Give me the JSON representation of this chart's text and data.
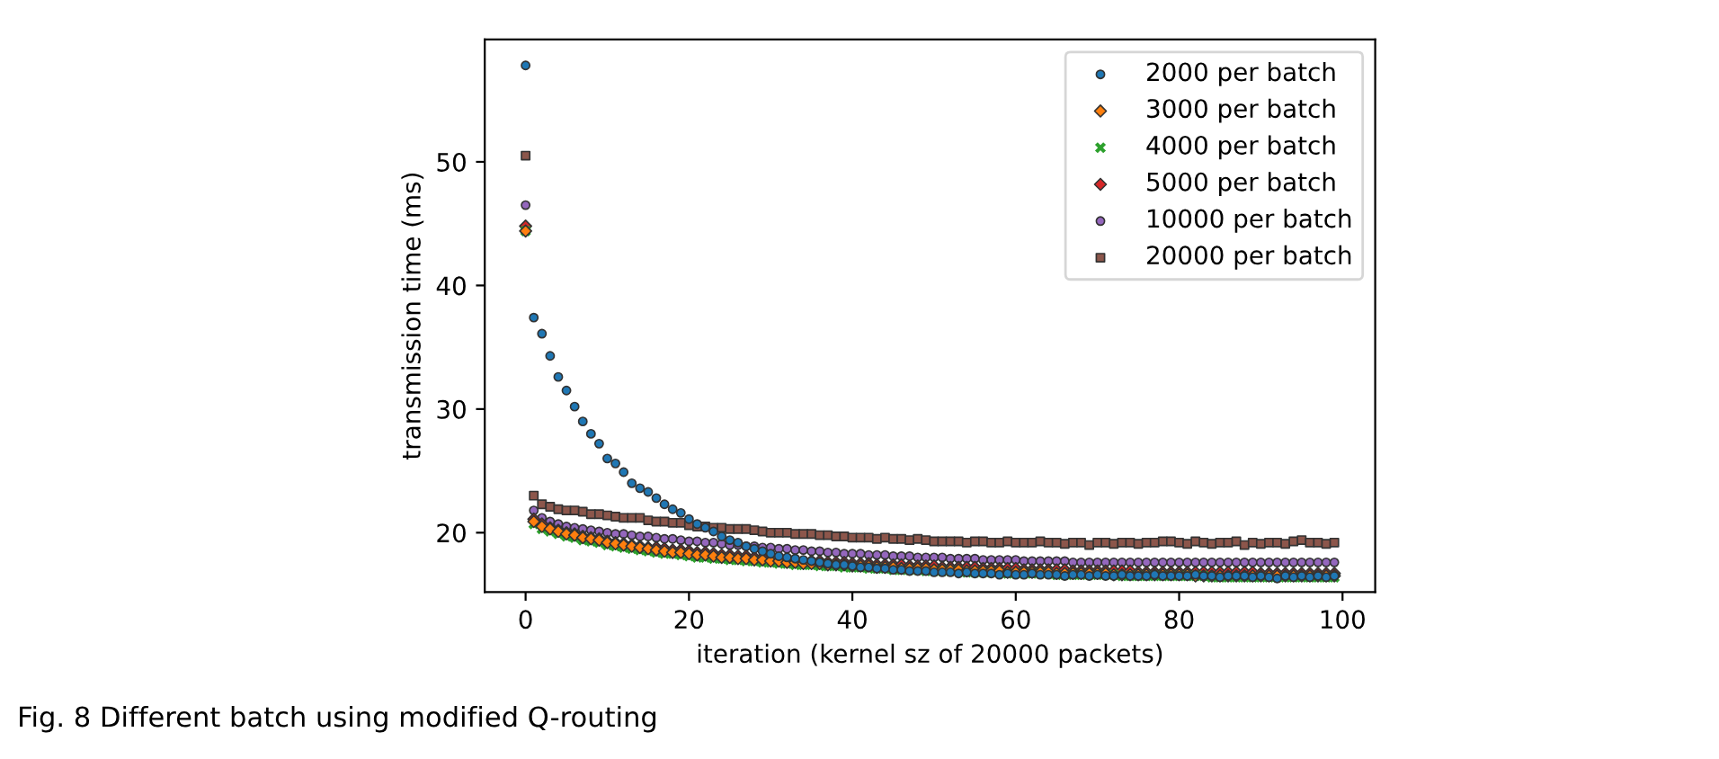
{
  "chart_data": {
    "type": "scatter",
    "xlabel": "iteration (kernel sz of 20000 packets)",
    "ylabel": "transmission time (ms)",
    "annotations": [
      "Fig. 8 Different batch using modified Q-routing"
    ],
    "x": [
      0,
      1,
      2,
      3,
      4,
      5,
      6,
      7,
      8,
      9,
      10,
      11,
      12,
      13,
      14,
      15,
      16,
      17,
      18,
      19,
      20,
      21,
      22,
      23,
      24,
      25,
      26,
      27,
      28,
      29,
      30,
      31,
      32,
      33,
      34,
      35,
      36,
      37,
      38,
      39,
      40,
      41,
      42,
      43,
      44,
      45,
      46,
      47,
      48,
      49,
      50,
      51,
      52,
      53,
      54,
      55,
      56,
      57,
      58,
      59,
      60,
      61,
      62,
      63,
      64,
      65,
      66,
      67,
      68,
      69,
      70,
      71,
      72,
      73,
      74,
      75,
      76,
      77,
      78,
      79,
      80,
      81,
      82,
      83,
      84,
      85,
      86,
      87,
      88,
      89,
      90,
      91,
      92,
      93,
      94,
      95,
      96,
      97,
      98,
      99
    ],
    "xlim": [
      -5,
      104
    ],
    "ylim": [
      15.2,
      59.9
    ],
    "xticks": [
      0,
      20,
      40,
      60,
      80,
      100
    ],
    "yticks": [
      20,
      30,
      40,
      50
    ],
    "legend": "top right",
    "grid": false,
    "series": [
      {
        "name": "2000 per batch",
        "color": "#1f77b4",
        "marker": "circle",
        "values": [
          57.8,
          37.4,
          36.1,
          34.3,
          32.6,
          31.5,
          30.2,
          29.0,
          28.0,
          27.2,
          26.0,
          25.6,
          24.9,
          24.0,
          23.6,
          23.3,
          22.8,
          22.3,
          21.9,
          21.6,
          21.1,
          20.7,
          20.4,
          20.1,
          19.7,
          19.4,
          19.2,
          18.9,
          18.7,
          18.5,
          18.3,
          18.1,
          18.0,
          17.9,
          17.8,
          17.7,
          17.6,
          17.5,
          17.4,
          17.4,
          17.3,
          17.2,
          17.2,
          17.1,
          17.1,
          17.0,
          17.0,
          16.9,
          16.9,
          16.9,
          16.8,
          16.8,
          16.8,
          16.7,
          16.8,
          16.7,
          16.7,
          16.7,
          16.6,
          16.7,
          16.6,
          16.6,
          16.7,
          16.6,
          16.6,
          16.6,
          16.5,
          16.6,
          16.6,
          16.5,
          16.6,
          16.5,
          16.5,
          16.6,
          16.5,
          16.5,
          16.5,
          16.6,
          16.5,
          16.5,
          16.5,
          16.5,
          16.6,
          16.5,
          16.5,
          16.4,
          16.5,
          16.5,
          16.5,
          16.4,
          16.5,
          16.4,
          16.3,
          16.5,
          16.4,
          16.5,
          16.4,
          16.5,
          16.4,
          16.5
        ]
      },
      {
        "name": "3000 per batch",
        "color": "#ff7f0e",
        "marker": "diamond",
        "values": [
          44.4,
          20.9,
          20.5,
          20.3,
          20.1,
          19.9,
          19.8,
          19.6,
          19.5,
          19.4,
          19.2,
          19.1,
          19.0,
          18.9,
          18.8,
          18.7,
          18.6,
          18.5,
          18.4,
          18.4,
          18.3,
          18.2,
          18.2,
          18.1,
          18.0,
          18.0,
          17.9,
          17.9,
          17.8,
          17.8,
          17.7,
          17.7,
          17.6,
          17.6,
          17.5,
          17.5,
          17.5,
          17.4,
          17.4,
          17.4,
          17.3,
          17.3,
          17.3,
          17.2,
          17.2,
          17.2,
          17.1,
          17.1,
          17.1,
          17.1,
          17.0,
          17.0,
          17.0,
          17.0,
          16.9,
          16.9,
          16.9,
          16.9,
          16.9,
          16.8,
          16.8,
          16.8,
          16.8,
          16.8,
          16.8,
          16.7,
          16.7,
          16.7,
          16.7,
          16.7,
          16.7,
          16.7,
          16.6,
          16.6,
          16.6,
          16.6,
          16.6,
          16.6,
          16.6,
          16.6,
          16.6,
          16.6,
          16.5,
          16.5,
          16.5,
          16.5,
          16.5,
          16.5,
          16.5,
          16.5,
          16.5,
          16.5,
          16.5,
          16.5,
          16.5,
          16.5,
          16.5,
          16.5,
          16.5,
          16.5
        ]
      },
      {
        "name": "4000 per batch",
        "color": "#2ca02c",
        "marker": "cross",
        "values": [
          44.4,
          20.7,
          20.3,
          20.1,
          19.9,
          19.7,
          19.6,
          19.4,
          19.3,
          19.2,
          19.0,
          18.9,
          18.8,
          18.7,
          18.6,
          18.5,
          18.4,
          18.3,
          18.3,
          18.2,
          18.1,
          18.0,
          18.0,
          17.9,
          17.9,
          17.8,
          17.8,
          17.7,
          17.7,
          17.6,
          17.6,
          17.5,
          17.5,
          17.4,
          17.4,
          17.4,
          17.3,
          17.3,
          17.3,
          17.2,
          17.2,
          17.2,
          17.1,
          17.1,
          17.1,
          17.0,
          17.0,
          17.0,
          17.0,
          16.9,
          16.9,
          16.9,
          16.9,
          16.9,
          16.8,
          16.8,
          16.8,
          16.8,
          16.8,
          16.7,
          16.7,
          16.7,
          16.7,
          16.7,
          16.7,
          16.6,
          16.6,
          16.6,
          16.6,
          16.6,
          16.6,
          16.6,
          16.6,
          16.5,
          16.5,
          16.5,
          16.5,
          16.5,
          16.5,
          16.5,
          16.5,
          16.5,
          16.5,
          16.5,
          16.4,
          16.4,
          16.4,
          16.4,
          16.4,
          16.4,
          16.4,
          16.4,
          16.4,
          16.4,
          16.4,
          16.4,
          16.4,
          16.4,
          16.4,
          16.4
        ]
      },
      {
        "name": "5000 per batch",
        "color": "#d62728",
        "marker": "diamond",
        "values": [
          44.8,
          21.1,
          20.7,
          20.4,
          20.2,
          20.0,
          19.9,
          19.7,
          19.6,
          19.5,
          19.3,
          19.2,
          19.1,
          19.0,
          18.9,
          18.8,
          18.8,
          18.7,
          18.6,
          18.6,
          18.5,
          18.4,
          18.4,
          18.3,
          18.2,
          18.2,
          18.1,
          18.1,
          18.0,
          18.0,
          null,
          null,
          null,
          null,
          null,
          17.7,
          17.7,
          17.6,
          17.6,
          17.6,
          17.5,
          17.5,
          17.5,
          17.4,
          17.4,
          17.4,
          17.4,
          17.3,
          17.3,
          17.3,
          17.3,
          17.2,
          17.2,
          17.2,
          17.2,
          17.2,
          17.1,
          17.1,
          17.1,
          17.1,
          17.1,
          17.0,
          17.0,
          17.0,
          17.0,
          17.0,
          17.0,
          16.9,
          16.9,
          16.9,
          16.9,
          16.9,
          16.9,
          16.9,
          16.9,
          16.8,
          16.8,
          16.8,
          16.8,
          16.8,
          16.8,
          16.8,
          16.8,
          16.8,
          16.8,
          16.8,
          16.8,
          16.8,
          16.8,
          16.8,
          16.7,
          16.7,
          16.7,
          16.7,
          16.7,
          16.7,
          16.7,
          16.7,
          16.7,
          16.7
        ]
      },
      {
        "name": "10000 per batch",
        "color": "#9467bd",
        "marker": "circle",
        "values": [
          46.5,
          21.8,
          21.2,
          20.9,
          20.7,
          20.5,
          20.4,
          20.3,
          20.2,
          20.1,
          20.0,
          19.9,
          19.9,
          19.8,
          19.7,
          19.7,
          19.6,
          19.5,
          19.5,
          19.4,
          19.3,
          19.3,
          19.2,
          19.2,
          19.1,
          19.0,
          19.0,
          18.9,
          18.9,
          18.8,
          18.8,
          18.7,
          18.7,
          18.6,
          18.6,
          18.5,
          18.5,
          18.4,
          18.4,
          18.3,
          18.3,
          18.3,
          18.2,
          18.2,
          18.2,
          18.1,
          18.1,
          18.1,
          18.0,
          18.0,
          18.0,
          18.0,
          17.9,
          17.9,
          17.9,
          17.9,
          17.8,
          17.8,
          17.8,
          17.8,
          17.8,
          17.7,
          17.7,
          17.7,
          17.7,
          17.7,
          17.7,
          17.6,
          17.6,
          17.6,
          17.6,
          17.6,
          17.6,
          17.6,
          17.6,
          17.6,
          17.6,
          17.6,
          17.6,
          17.6,
          17.6,
          17.6,
          17.6,
          17.6,
          17.6,
          17.6,
          17.6,
          17.6,
          17.6,
          17.6,
          17.6,
          17.6,
          17.6,
          17.6,
          17.6,
          17.6,
          17.6,
          17.6,
          17.6,
          17.6
        ]
      },
      {
        "name": "20000 per batch",
        "color": "#8c564b",
        "marker": "square",
        "values": [
          50.5,
          23.0,
          22.3,
          22.1,
          21.9,
          21.8,
          21.8,
          21.7,
          21.5,
          21.5,
          21.4,
          21.3,
          21.2,
          21.2,
          21.2,
          21.0,
          20.9,
          20.9,
          20.8,
          20.8,
          20.6,
          20.5,
          20.5,
          20.4,
          20.4,
          20.3,
          20.3,
          20.3,
          20.2,
          20.1,
          20.0,
          20.0,
          20.0,
          19.9,
          19.9,
          19.9,
          19.8,
          19.8,
          19.7,
          19.7,
          19.6,
          19.6,
          19.6,
          19.5,
          19.6,
          19.5,
          19.5,
          19.4,
          19.5,
          19.4,
          19.3,
          19.3,
          19.3,
          19.3,
          19.2,
          19.3,
          19.3,
          19.2,
          19.2,
          19.3,
          19.2,
          19.2,
          19.2,
          19.3,
          19.2,
          19.2,
          19.1,
          19.2,
          19.2,
          19.0,
          19.2,
          19.2,
          19.1,
          19.2,
          19.2,
          19.1,
          19.2,
          19.2,
          19.3,
          19.3,
          19.2,
          19.1,
          19.3,
          19.2,
          19.1,
          19.2,
          19.2,
          19.3,
          19.0,
          19.2,
          19.1,
          19.2,
          19.2,
          19.1,
          19.3,
          19.4,
          19.2,
          19.2,
          19.1,
          19.2
        ]
      }
    ]
  }
}
